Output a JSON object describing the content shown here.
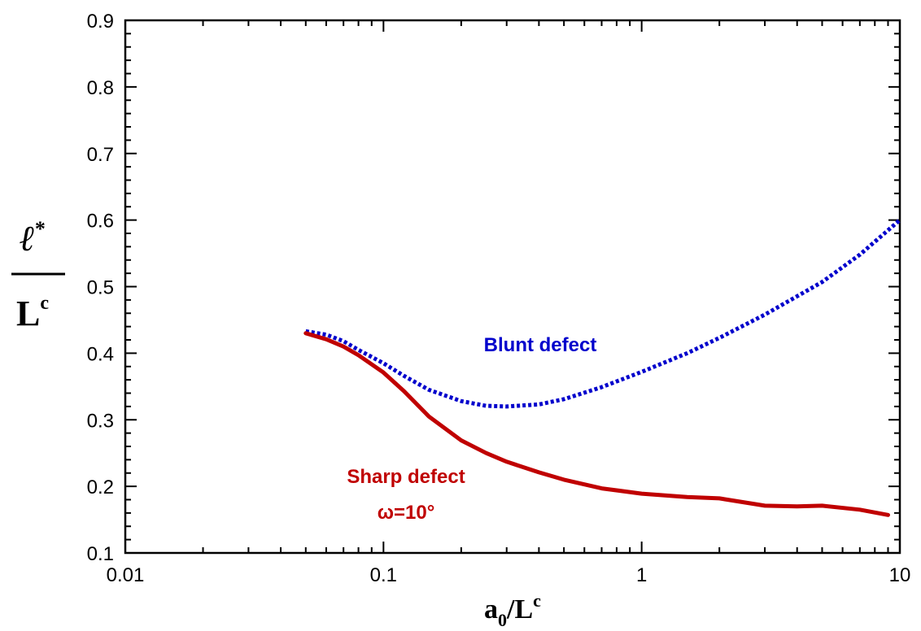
{
  "chart_data": {
    "type": "line",
    "x_scale": "log",
    "xlim": [
      0.01,
      10
    ],
    "ylim": [
      0.1,
      0.9
    ],
    "grid": false,
    "x_ticks": [
      "0.01",
      "0.1",
      "1",
      "10"
    ],
    "y_ticks": [
      "0.1",
      "0.2",
      "0.3",
      "0.4",
      "0.5",
      "0.6",
      "0.7",
      "0.8",
      "0.9"
    ],
    "xlabel": {
      "base": "a",
      "sub": "0",
      "slash": "/L",
      "sup": "c"
    },
    "ylabel": {
      "numerator": "ℓ",
      "numerator_sup": "*",
      "denominator": "L",
      "denominator_sup": "c"
    },
    "colors": {
      "blunt": "#0000cc",
      "sharp": "#c00000"
    },
    "series": [
      {
        "name": "Blunt defect",
        "style": "dotted",
        "x": [
          0.05,
          0.06,
          0.07,
          0.08,
          0.1,
          0.12,
          0.15,
          0.2,
          0.25,
          0.3,
          0.4,
          0.5,
          0.7,
          1,
          1.5,
          2,
          3,
          5,
          7,
          10
        ],
        "y": [
          0.433,
          0.428,
          0.418,
          0.405,
          0.385,
          0.366,
          0.345,
          0.328,
          0.321,
          0.32,
          0.323,
          0.331,
          0.349,
          0.372,
          0.4,
          0.423,
          0.458,
          0.507,
          0.548,
          0.6
        ]
      },
      {
        "name": "Sharp defect",
        "name_line2": "ω=10°",
        "style": "solid",
        "x": [
          0.05,
          0.06,
          0.07,
          0.08,
          0.1,
          0.12,
          0.15,
          0.2,
          0.25,
          0.3,
          0.4,
          0.5,
          0.7,
          1,
          1.5,
          2,
          3,
          4,
          5,
          7,
          9
        ],
        "y": [
          0.43,
          0.421,
          0.41,
          0.397,
          0.371,
          0.343,
          0.305,
          0.269,
          0.25,
          0.237,
          0.221,
          0.21,
          0.197,
          0.189,
          0.184,
          0.182,
          0.171,
          0.17,
          0.171,
          0.165,
          0.157
        ]
      }
    ]
  }
}
